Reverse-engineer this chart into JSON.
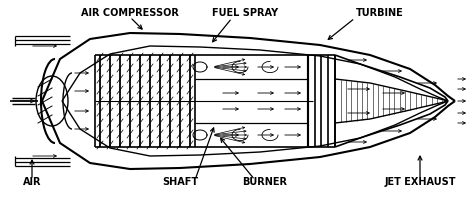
{
  "bg_color": "#ffffff",
  "line_color": "#000000",
  "labels": {
    "air_compressor": "AIR COMPRESSOR",
    "fuel_spray": "FUEL SPRAY",
    "turbine": "TURBINE",
    "air": "AIR",
    "shaft": "SHAFT",
    "burner": "BURNER",
    "jet_exhaust": "JET EXHAUST"
  },
  "figsize": [
    4.74,
    2.03
  ],
  "dpi": 100
}
